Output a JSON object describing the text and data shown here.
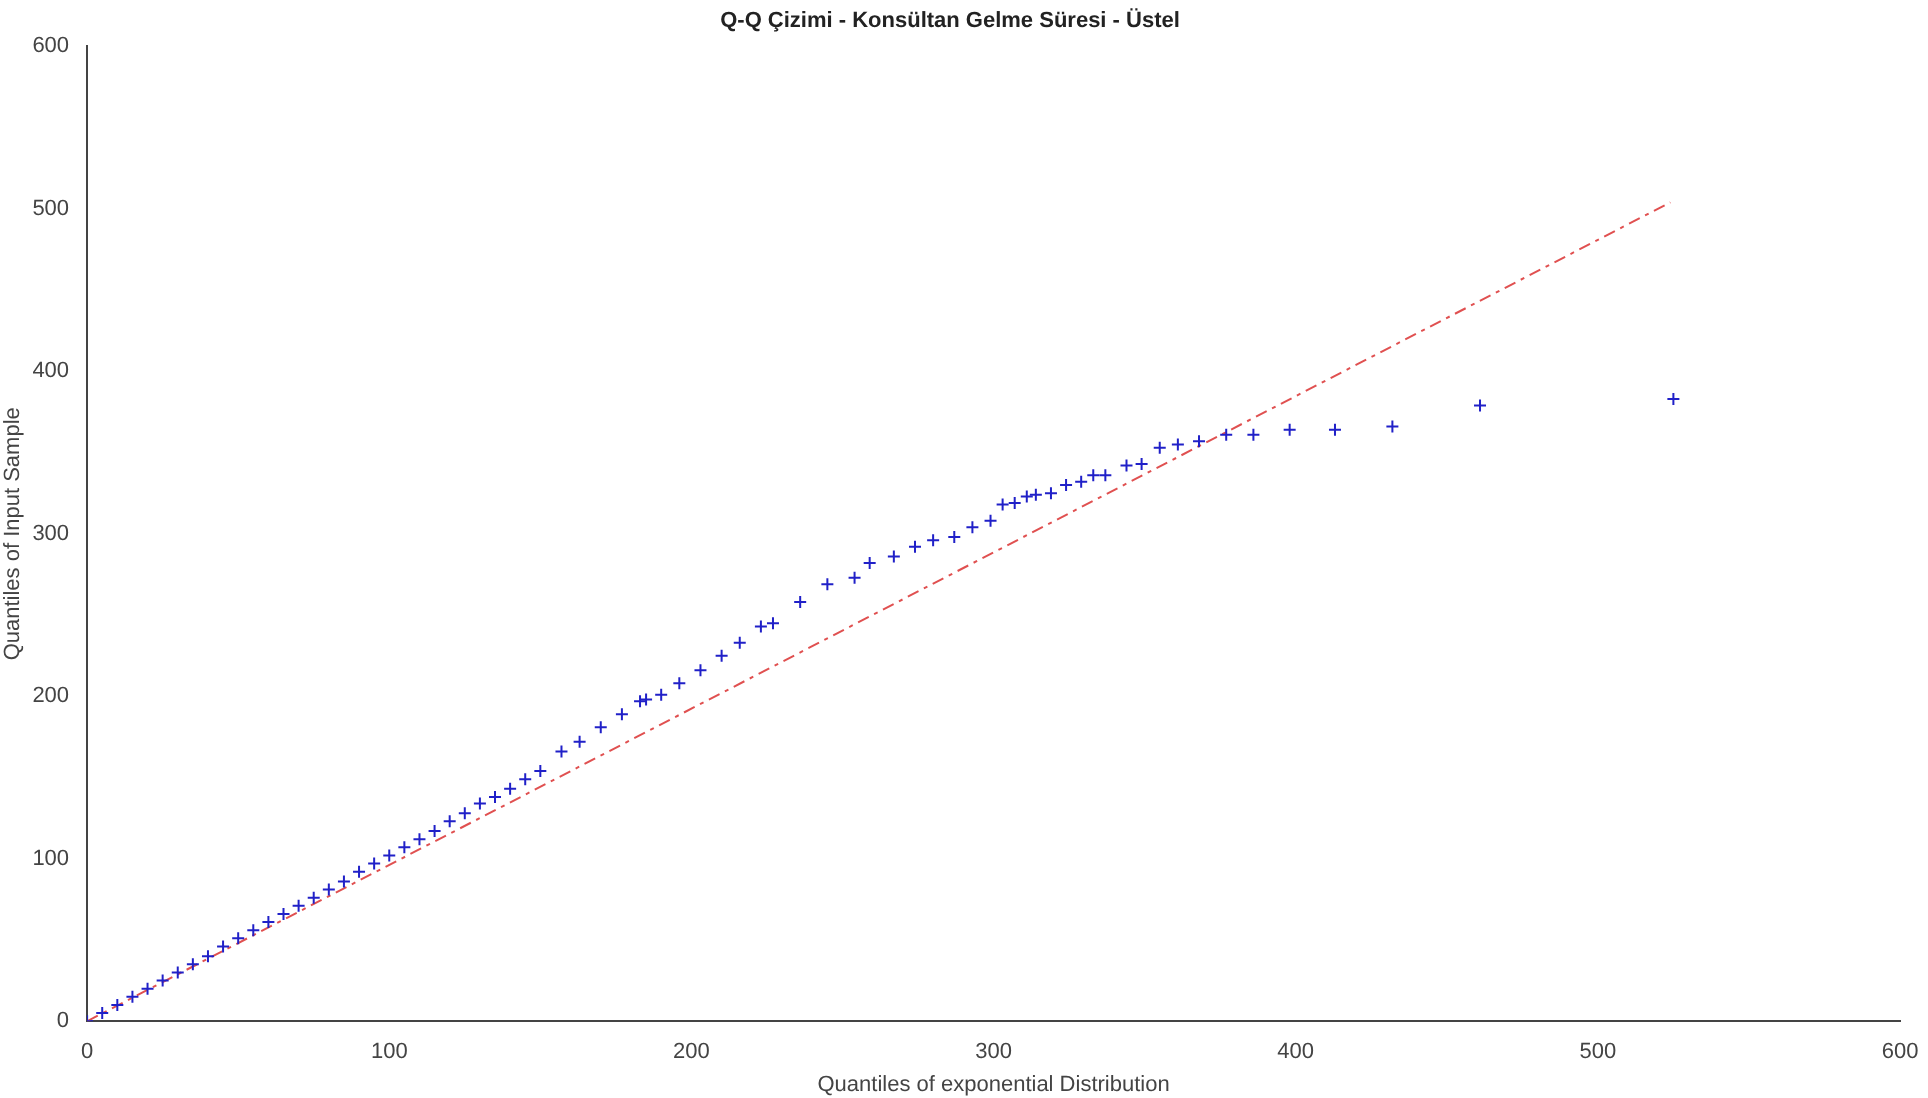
{
  "chart_data": {
    "type": "scatter",
    "title": "Q-Q Çizimi - Konsültan Gelme Süresi - Üstel",
    "xlabel": "Quantiles of exponential Distribution",
    "ylabel": "Quantiles of Input Sample",
    "xlim": [
      0,
      600
    ],
    "xticks": [
      0,
      100,
      200,
      300,
      400,
      500,
      600
    ],
    "ylim": [
      0,
      600
    ],
    "yticks": [
      0,
      100,
      200,
      300,
      400,
      500,
      600
    ],
    "grid": false,
    "legend": false,
    "marker": "cross",
    "series": [
      {
        "color": "#2020c8",
        "x": [
          0,
          5,
          10,
          15,
          20,
          25,
          30,
          35,
          40,
          45,
          50,
          55,
          60,
          65,
          70,
          75,
          80,
          85,
          90,
          95,
          100,
          105,
          110,
          115,
          120,
          125,
          130,
          135,
          140,
          145,
          150,
          157,
          163,
          170,
          177,
          183,
          185,
          190,
          196,
          203,
          210,
          216,
          223,
          227,
          236,
          245,
          254,
          259,
          267,
          274,
          280,
          287,
          293,
          299,
          303,
          307,
          311,
          314,
          319,
          324,
          329,
          333,
          337,
          344,
          349,
          355,
          361,
          368,
          377,
          386,
          398,
          413,
          432,
          461,
          525
        ],
        "values": [
          0,
          5,
          10,
          15,
          20,
          25,
          30,
          35,
          40,
          46,
          51,
          56,
          61,
          66,
          71,
          76,
          81,
          86,
          92,
          97,
          102,
          107,
          112,
          117,
          123,
          128,
          134,
          138,
          143,
          149,
          154,
          166,
          172,
          181,
          189,
          197,
          198,
          201,
          208,
          216,
          225,
          233,
          243,
          245,
          258,
          269,
          273,
          282,
          286,
          292,
          296,
          298,
          304,
          308,
          318,
          319,
          323,
          324,
          325,
          330,
          332,
          336,
          336,
          342,
          343,
          353,
          355,
          357,
          361,
          361,
          364,
          364,
          366,
          379,
          383
        ]
      },
      {
        "type": "line",
        "color": "#e05050",
        "line_style": "dashed",
        "marker": "none",
        "x": [
          0,
          524
        ],
        "values": [
          0,
          504
        ]
      }
    ]
  }
}
